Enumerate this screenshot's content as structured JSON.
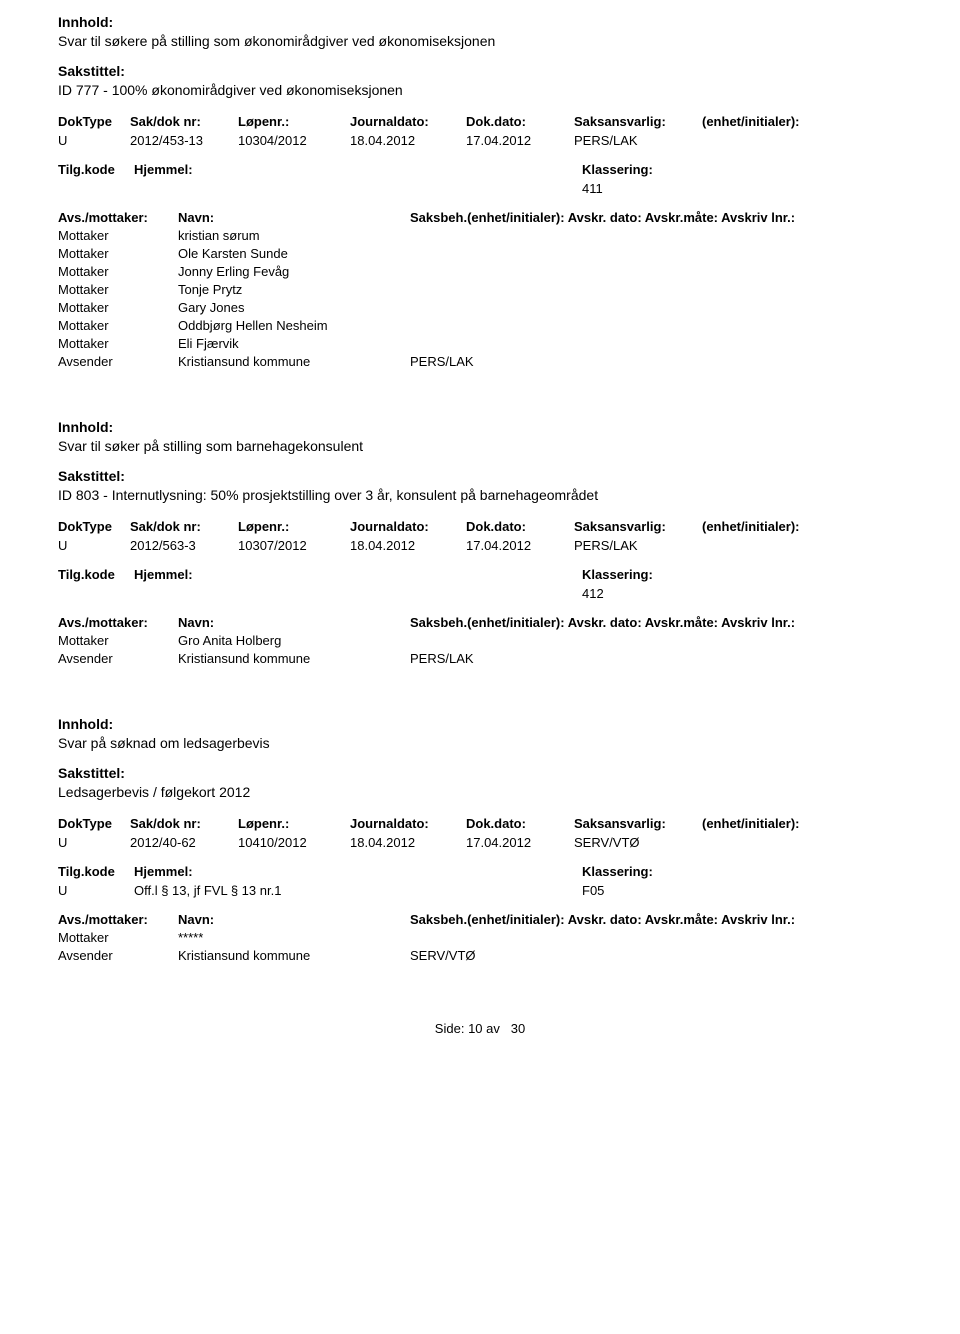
{
  "labels": {
    "innhold": "Innhold:",
    "sakstittel": "Sakstittel:",
    "doktype": "DokType",
    "saknr": "Sak/dok nr:",
    "lopenr": "Løpenr.:",
    "journaldato": "Journaldato:",
    "dokdato": "Dok.dato:",
    "saksansvarlig": "Saksansvarlig:",
    "enhet": "(enhet/initialer):",
    "tilgkode": "Tilg.kode",
    "hjemmel": "Hjemmel:",
    "klassering": "Klassering:",
    "avsmottaker": "Avs./mottaker:",
    "navn": "Navn:",
    "saksbeh": "Saksbeh.(enhet/initialer): Avskr. dato: Avskr.måte: Avskriv lnr.:",
    "mottaker": "Mottaker",
    "avsender": "Avsender"
  },
  "records": [
    {
      "content": "Svar til søkere på stilling som økonomirådgiver ved økonomiseksjonen",
      "case_title": "ID 777 - 100% økonomirådgiver ved økonomiseksjonen",
      "doktype": "U",
      "saknr": "2012/453-13",
      "lopenr": "10304/2012",
      "journaldato": "18.04.2012",
      "dokdato": "17.04.2012",
      "saksansvarlig": "PERS/LAK",
      "tilgkode": "",
      "hjemmel": "",
      "klassering": "411",
      "parties": [
        {
          "role": "Mottaker",
          "name": "kristian sørum",
          "unit": ""
        },
        {
          "role": "Mottaker",
          "name": "Ole Karsten Sunde",
          "unit": ""
        },
        {
          "role": "Mottaker",
          "name": "Jonny Erling Fevåg",
          "unit": ""
        },
        {
          "role": "Mottaker",
          "name": "Tonje Prytz",
          "unit": ""
        },
        {
          "role": "Mottaker",
          "name": "Gary Jones",
          "unit": ""
        },
        {
          "role": "Mottaker",
          "name": "Oddbjørg Hellen  Nesheim",
          "unit": ""
        },
        {
          "role": "Mottaker",
          "name": "Eli Fjærvik",
          "unit": ""
        },
        {
          "role": "Avsender",
          "name": "Kristiansund kommune",
          "unit": "PERS/LAK"
        }
      ]
    },
    {
      "content": "Svar til søker på stilling som barnehagekonsulent",
      "case_title": "ID 803 - Internutlysning: 50% prosjektstilling over 3 år, konsulent på barnehageområdet",
      "doktype": "U",
      "saknr": "2012/563-3",
      "lopenr": "10307/2012",
      "journaldato": "18.04.2012",
      "dokdato": "17.04.2012",
      "saksansvarlig": "PERS/LAK",
      "tilgkode": "",
      "hjemmel": "",
      "klassering": "412",
      "parties": [
        {
          "role": "Mottaker",
          "name": "Gro Anita  Holberg",
          "unit": ""
        },
        {
          "role": "Avsender",
          "name": "Kristiansund kommune",
          "unit": "PERS/LAK"
        }
      ]
    },
    {
      "content": "Svar på søknad om ledsagerbevis",
      "case_title": "Ledsagerbevis / følgekort 2012",
      "doktype": "U",
      "saknr": "2012/40-62",
      "lopenr": "10410/2012",
      "journaldato": "18.04.2012",
      "dokdato": "17.04.2012",
      "saksansvarlig": "SERV/VTØ",
      "tilgkode": "U",
      "hjemmel": "Off.l § 13, jf FVL § 13 nr.1",
      "klassering": "F05",
      "parties": [
        {
          "role": "Mottaker",
          "name": "*****",
          "unit": ""
        },
        {
          "role": "Avsender",
          "name": "Kristiansund kommune",
          "unit": "SERV/VTØ"
        }
      ]
    }
  ],
  "footer": {
    "side": "Side:",
    "page": "10",
    "av": "av",
    "total": "30"
  }
}
